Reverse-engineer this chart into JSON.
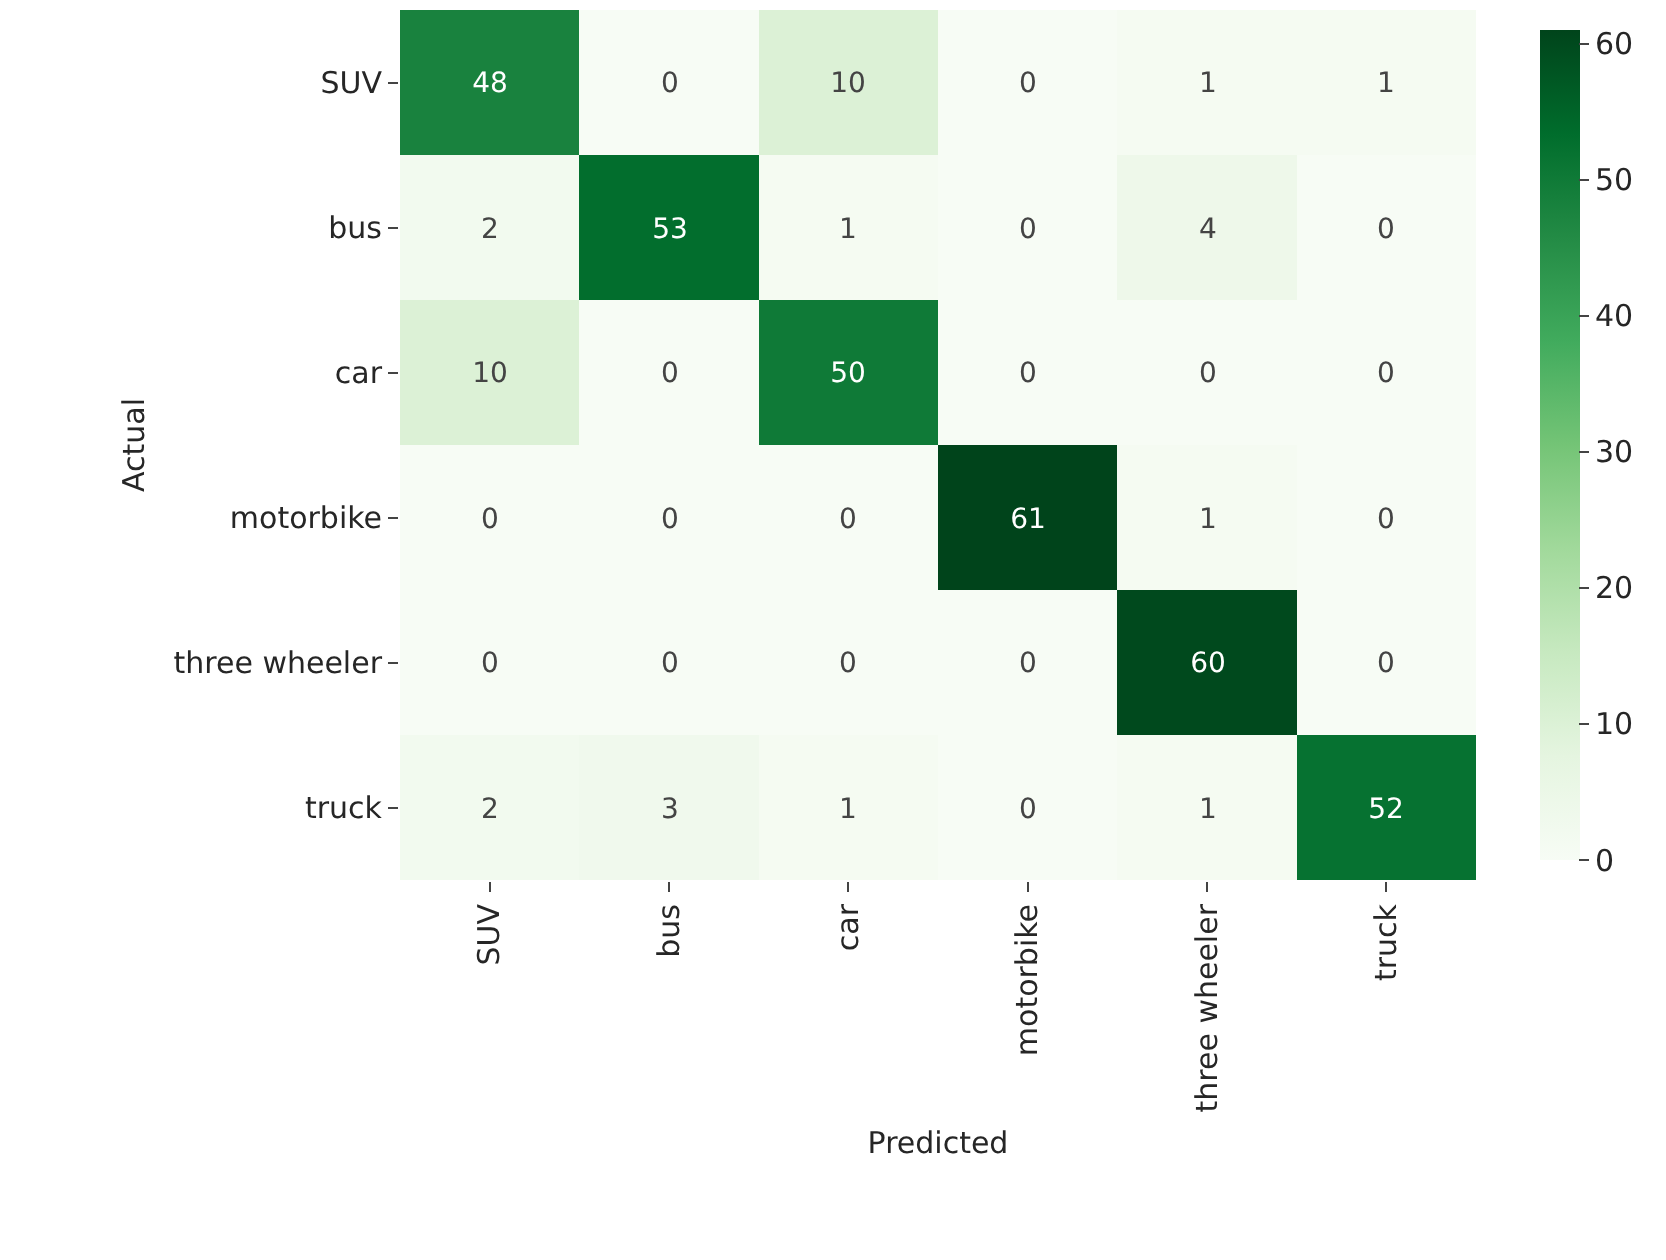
{
  "chart_data": {
    "type": "heatmap",
    "xlabel": "Predicted",
    "ylabel": "Actual",
    "categories": [
      "SUV",
      "bus",
      "car",
      "motorbike",
      "three wheeler",
      "truck"
    ],
    "y_categories": [
      "SUV",
      "bus",
      "car",
      "motorbike",
      "three wheeler",
      "truck"
    ],
    "cells": [
      [
        48,
        0,
        10,
        0,
        1,
        1
      ],
      [
        2,
        53,
        1,
        0,
        4,
        0
      ],
      [
        10,
        0,
        50,
        0,
        0,
        0
      ],
      [
        0,
        0,
        0,
        61,
        1,
        0
      ],
      [
        0,
        0,
        0,
        0,
        60,
        0
      ],
      [
        2,
        3,
        1,
        0,
        1,
        52
      ]
    ],
    "clim": [
      0,
      61
    ],
    "cticks": [
      0,
      10,
      20,
      30,
      40,
      50,
      60
    ],
    "data_labels": true
  }
}
